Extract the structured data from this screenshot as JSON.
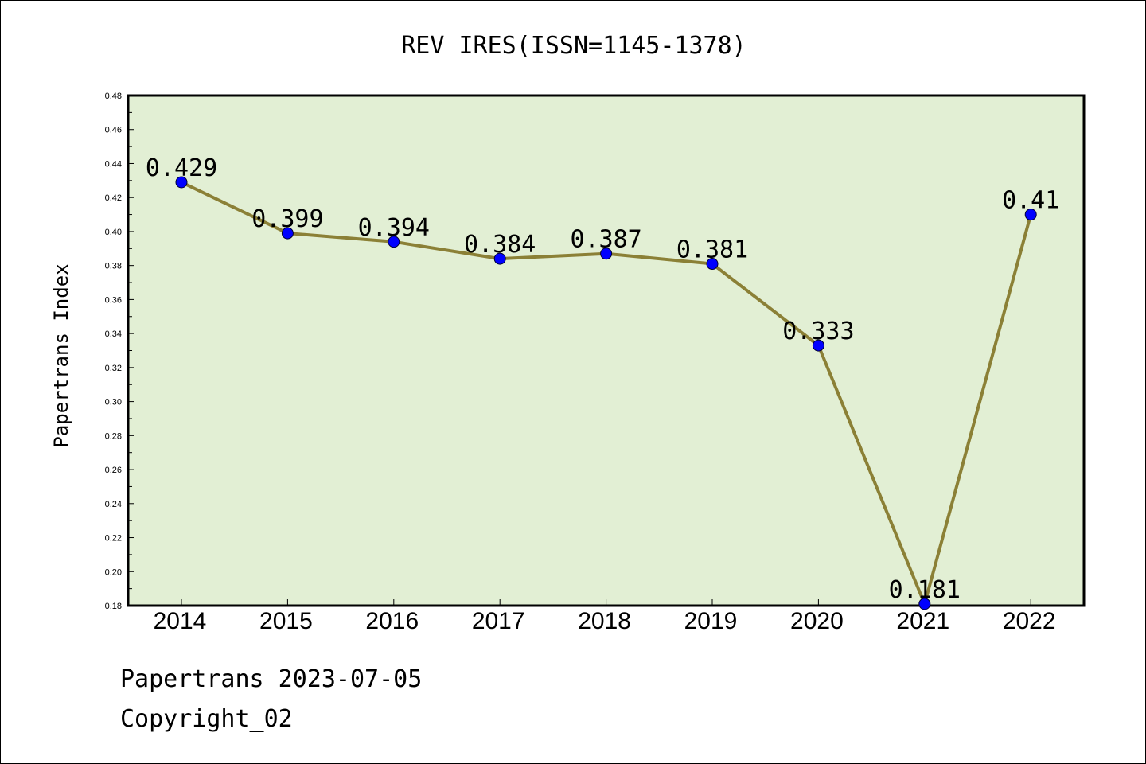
{
  "chart_data": {
    "type": "line",
    "title": "REV IRES(ISSN=1145-1378)",
    "ylabel": "Papertrans Index",
    "xlabel": "",
    "x": [
      "2014",
      "2015",
      "2016",
      "2017",
      "2018",
      "2019",
      "2020",
      "2021",
      "2022"
    ],
    "series": [
      {
        "values": [
          0.429,
          0.399,
          0.394,
          0.384,
          0.387,
          0.381,
          0.333,
          0.181,
          0.41
        ],
        "labels": [
          "0.429",
          "0.399",
          "0.394",
          "0.384",
          "0.387",
          "0.381",
          "0.333",
          "0.181",
          "0.41"
        ]
      }
    ],
    "ylim": [
      0.18,
      0.48
    ],
    "yticks": [
      "0.18",
      "0.20",
      "0.22",
      "0.24",
      "0.26",
      "0.28",
      "0.30",
      "0.32",
      "0.34",
      "0.36",
      "0.38",
      "0.40",
      "0.42",
      "0.44",
      "0.46",
      "0.48"
    ],
    "grid": false,
    "legend": false,
    "colors": {
      "plot_background": "#e2efd4",
      "line": "#8b8036",
      "marker": "#0000ff"
    }
  },
  "footer": {
    "source": "Papertrans 2023-07-05",
    "copyright": "Copyright_02"
  }
}
